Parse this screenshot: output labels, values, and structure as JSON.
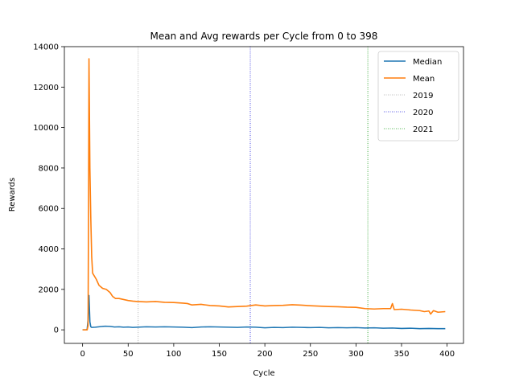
{
  "chart_data": {
    "type": "line",
    "title": "Mean and Avg rewards per Cycle from 0 to 398",
    "xlabel": "Cycle",
    "ylabel": "Rewards",
    "xlim": [
      -20,
      418
    ],
    "ylim": [
      -670,
      14000
    ],
    "xticks": [
      0,
      50,
      100,
      150,
      200,
      250,
      300,
      350,
      400
    ],
    "yticks": [
      0,
      2000,
      4000,
      6000,
      8000,
      10000,
      12000,
      14000
    ],
    "grid": false,
    "legend_position": "top-right",
    "series": [
      {
        "name": "Median",
        "color": "#1f77b4",
        "points": [
          [
            0,
            0
          ],
          [
            4,
            0
          ],
          [
            5,
            30
          ],
          [
            6,
            500
          ],
          [
            7,
            1700
          ],
          [
            8,
            400
          ],
          [
            9,
            150
          ],
          [
            10,
            120
          ],
          [
            14,
            130
          ],
          [
            20,
            160
          ],
          [
            25,
            180
          ],
          [
            30,
            170
          ],
          [
            35,
            140
          ],
          [
            40,
            150
          ],
          [
            45,
            130
          ],
          [
            50,
            140
          ],
          [
            55,
            120
          ],
          [
            60,
            130
          ],
          [
            70,
            150
          ],
          [
            80,
            140
          ],
          [
            90,
            150
          ],
          [
            100,
            140
          ],
          [
            110,
            130
          ],
          [
            120,
            110
          ],
          [
            130,
            140
          ],
          [
            140,
            150
          ],
          [
            150,
            140
          ],
          [
            160,
            130
          ],
          [
            170,
            120
          ],
          [
            180,
            140
          ],
          [
            190,
            130
          ],
          [
            200,
            100
          ],
          [
            210,
            120
          ],
          [
            220,
            110
          ],
          [
            230,
            130
          ],
          [
            240,
            120
          ],
          [
            250,
            110
          ],
          [
            260,
            120
          ],
          [
            270,
            100
          ],
          [
            280,
            110
          ],
          [
            290,
            100
          ],
          [
            300,
            110
          ],
          [
            310,
            90
          ],
          [
            320,
            100
          ],
          [
            330,
            80
          ],
          [
            340,
            90
          ],
          [
            350,
            70
          ],
          [
            360,
            80
          ],
          [
            370,
            60
          ],
          [
            380,
            70
          ],
          [
            390,
            60
          ],
          [
            398,
            60
          ]
        ]
      },
      {
        "name": "Mean",
        "color": "#ff7f0e",
        "points": [
          [
            0,
            0
          ],
          [
            5,
            0
          ],
          [
            6,
            200
          ],
          [
            6.5,
            6000
          ],
          [
            7,
            13400
          ],
          [
            8,
            8000
          ],
          [
            9,
            5500
          ],
          [
            10,
            3600
          ],
          [
            11,
            2800
          ],
          [
            15,
            2500
          ],
          [
            18,
            2200
          ],
          [
            22,
            2050
          ],
          [
            26,
            2000
          ],
          [
            30,
            1850
          ],
          [
            33,
            1650
          ],
          [
            36,
            1550
          ],
          [
            40,
            1550
          ],
          [
            45,
            1500
          ],
          [
            50,
            1450
          ],
          [
            55,
            1420
          ],
          [
            60,
            1400
          ],
          [
            70,
            1380
          ],
          [
            80,
            1400
          ],
          [
            90,
            1360
          ],
          [
            100,
            1350
          ],
          [
            110,
            1320
          ],
          [
            115,
            1300
          ],
          [
            120,
            1230
          ],
          [
            130,
            1260
          ],
          [
            140,
            1200
          ],
          [
            150,
            1180
          ],
          [
            160,
            1130
          ],
          [
            170,
            1150
          ],
          [
            180,
            1170
          ],
          [
            190,
            1230
          ],
          [
            200,
            1180
          ],
          [
            210,
            1200
          ],
          [
            220,
            1210
          ],
          [
            230,
            1240
          ],
          [
            240,
            1220
          ],
          [
            250,
            1190
          ],
          [
            260,
            1170
          ],
          [
            270,
            1150
          ],
          [
            280,
            1140
          ],
          [
            290,
            1120
          ],
          [
            300,
            1110
          ],
          [
            310,
            1050
          ],
          [
            320,
            1030
          ],
          [
            330,
            1050
          ],
          [
            338,
            1050
          ],
          [
            340,
            1300
          ],
          [
            342,
            1000
          ],
          [
            350,
            1020
          ],
          [
            360,
            980
          ],
          [
            370,
            950
          ],
          [
            375,
            900
          ],
          [
            380,
            930
          ],
          [
            382,
            780
          ],
          [
            385,
            950
          ],
          [
            390,
            870
          ],
          [
            398,
            900
          ]
        ]
      }
    ],
    "vlines": [
      {
        "name": "2019",
        "x": 61,
        "color": "#a8a8a8",
        "style": "dotted"
      },
      {
        "name": "2020",
        "x": 184,
        "color": "#2828e0",
        "style": "dotted"
      },
      {
        "name": "2021",
        "x": 313,
        "color": "#1a9e1a",
        "style": "dotted"
      }
    ]
  }
}
